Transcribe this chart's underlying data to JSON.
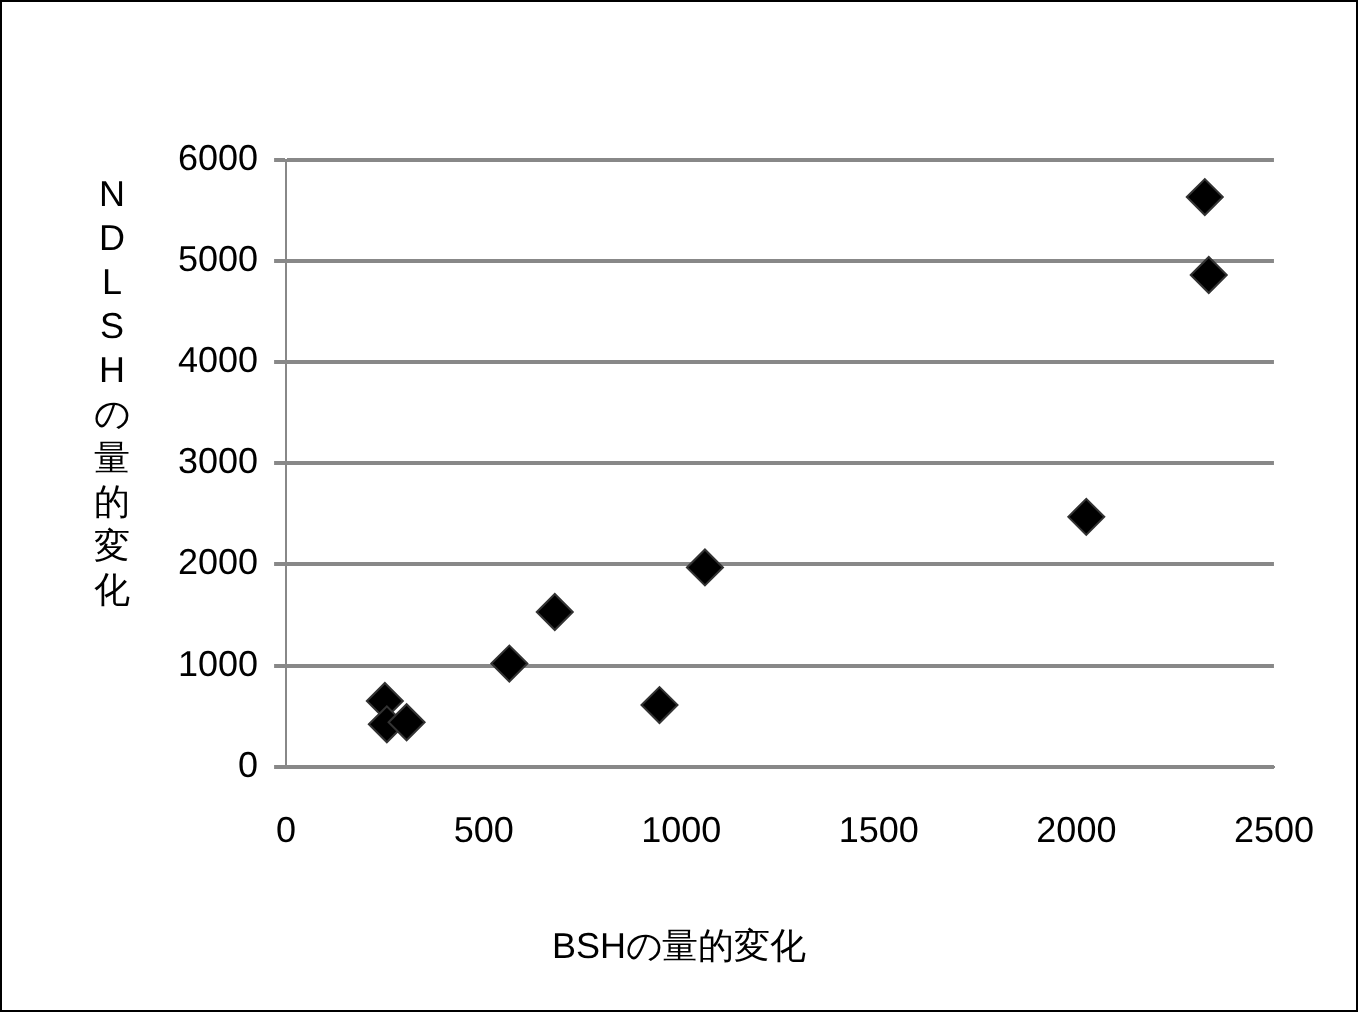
{
  "chart_data": {
    "type": "scatter",
    "xlabel": "BSHの量的変化",
    "ylabel": "NDLSHの量的変化",
    "x": [
      250,
      255,
      305,
      565,
      680,
      945,
      1060,
      2025,
      2325,
      2335
    ],
    "series": [
      {
        "color": "#000000",
        "values": [
          650,
          420,
          440,
          1020,
          1530,
          610,
          1970,
          2470,
          5630,
          4860
        ]
      }
    ],
    "xlim": [
      0,
      2500
    ],
    "xticks": [
      0,
      500,
      1000,
      1500,
      2000,
      2500
    ],
    "ylim": [
      0,
      6000
    ],
    "yticks": [
      0,
      1000,
      2000,
      3000,
      4000,
      5000,
      6000
    ],
    "grid": "y",
    "legend": false,
    "marker": "diamond"
  }
}
